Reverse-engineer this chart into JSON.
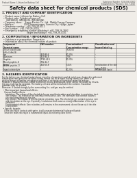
{
  "bg_color": "#f0ede8",
  "header_left": "Product Name: Lithium Ion Battery Cell",
  "header_right_l1": "Substance Number: SDS-049-00810",
  "header_right_l2": "Establishment / Revision: Dec.7.2010",
  "title": "Safety data sheet for chemical products (SDS)",
  "s1_title": "1. PRODUCT AND COMPANY IDENTIFICATION",
  "s1_lines": [
    "  • Product name: Lithium Ion Battery Cell",
    "  • Product code: Cylindrical-type cell",
    "      (IHR18650J, IHR18650L, IHR18650A)",
    "  • Company name:    Sanyo Electric Co., Ltd., Mobile Energy Company",
    "  • Address:              2001 Kamemiyazan, Sumoto-City, Hyogo, Japan",
    "  • Telephone number:  +81-799-26-4111",
    "  • Fax number:   +81-799-26-4129",
    "  • Emergency telephone number (Weekday): +81-799-26-2862",
    "                                    (Night and holiday): +81-799-26-4101"
  ],
  "s2_title": "2. COMPOSITION / INFORMATION ON INGREDIENTS",
  "s2_l1": "  • Substance or preparation: Preparation",
  "s2_l2": "  • Information about the chemical nature of product:",
  "th1": "Component /\nChemical name",
  "th2": "CAS number",
  "th3": "Concentration /\nConcentration range",
  "th4": "Classification and\nhazard labeling",
  "table_rows": [
    [
      "Lithium cobalt oxide\n(LiMn-CoMnO4)",
      "-",
      "(30-60%)",
      "-"
    ],
    [
      "Iron",
      "7439-89-6",
      "10-25%",
      "-"
    ],
    [
      "Aluminum",
      "7429-90-5",
      "2-5%",
      "-"
    ],
    [
      "Graphite\n(Mixed graphite-1)\n(All-life graphite-1)",
      "77782-42-5\n7782-44-7",
      "10-25%",
      "-"
    ],
    [
      "Copper",
      "7440-50-8",
      "5-15%",
      "Sensitization of the skin\ngroup R43.2"
    ],
    [
      "Organic electrolyte",
      "-",
      "10-20%",
      "Inflammable liquid"
    ]
  ],
  "s3_title": "3. HAZARDS IDENTIFICATION",
  "s3_para": "For the battery can, chemical materials are stored in a hermetically sealed metal case, designed to withstand\ntemperatures and pressure-variations during normal use. As a result, during normal use, there is no\nphysical danger of ignition or explosion and there is no danger of hazardous materials leakage.\nHowever, if exposed to a fire, added mechanical shocks, decomposed, when electro stimulated by misuse,\nthe gas inside can be operated. The battery cell case will be breached at the extreme. Hazardous\nmaterials may be released.\nMoreover, if heated strongly by the surrounding fire, acid gas may be emitted.",
  "s3_imp": "  • Most important hazard and effects:",
  "s3_human": "    Human health effects:",
  "s3_health": [
    "      Inhalation: The release of the electrolyte has an anesthesia action and stimulates in respiratory tract.",
    "      Skin contact: The release of the electrolyte stimulates a skin. The electrolyte skin contact causes a",
    "      sore and stimulation on the skin.",
    "      Eye contact: The release of the electrolyte stimulates eyes. The electrolyte eye contact causes a sore",
    "      and stimulation on the eye. Especially, a substance that causes a strong inflammation of the eye is",
    "      contained.",
    "      Environmental effects: Since a battery cell remains in the environment, do not throw out it into the",
    "      environment."
  ],
  "s3_spec": "  • Specific hazards:",
  "s3_spec_lines": [
    "    If the electrolyte contacts with water, it will generate detrimental hydrogen fluoride.",
    "    Since the main electrolyte is inflammable liquid, do not bring close to fire."
  ],
  "text_color": "#1a1a1a",
  "line_color": "#888888",
  "table_line_color": "#666666"
}
